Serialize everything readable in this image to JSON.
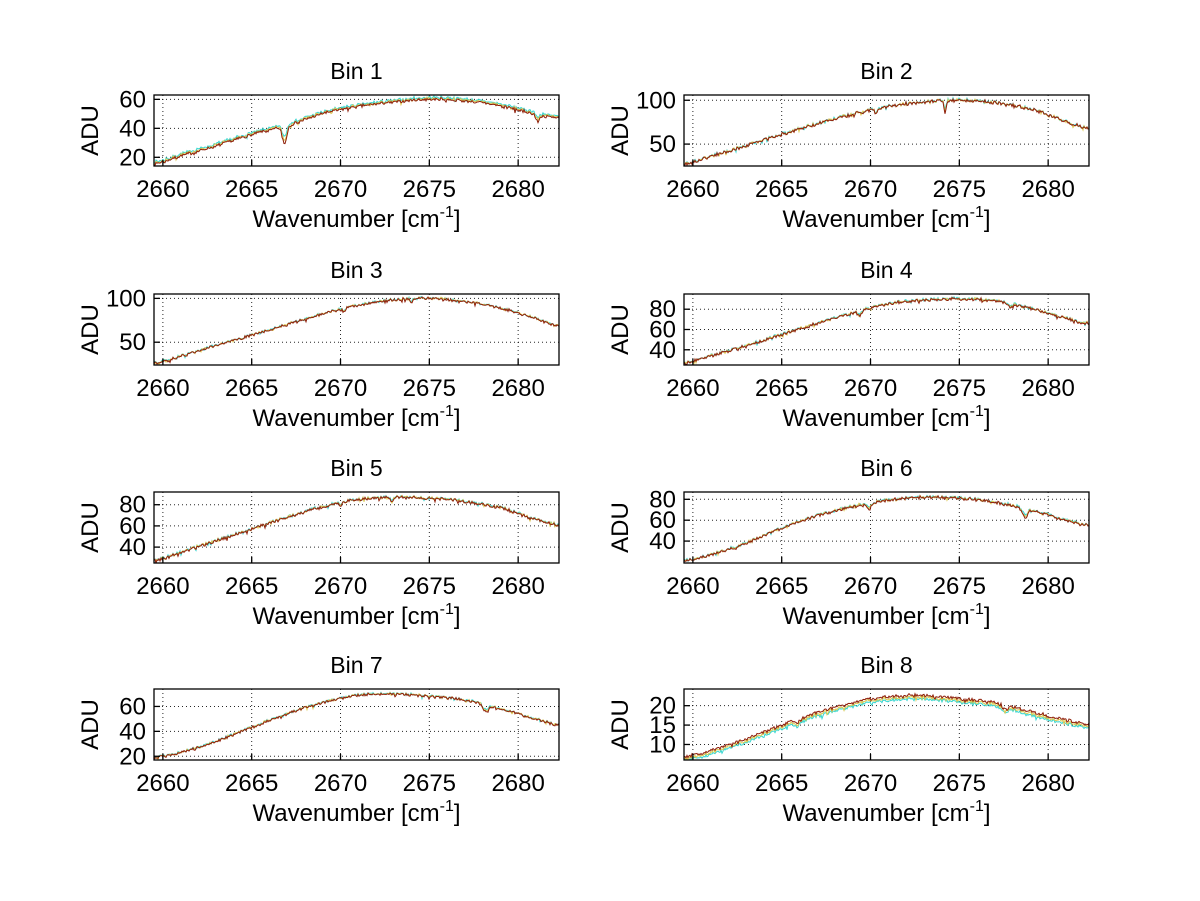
{
  "figure": {
    "background": "#ffffff",
    "axis_color": "#000000",
    "grid_style": "dotted",
    "ylabel": "ADU",
    "xlabel_pre": "Wavenumber [cm",
    "xlabel_sup": "-1",
    "xlabel_post": "]"
  },
  "chart_data": [
    {
      "type": "line",
      "title": "Bin 1",
      "ylabel": "ADU",
      "xlim": [
        2659.5,
        2682.3
      ],
      "ylim": [
        14,
        63
      ],
      "xticks": [
        2660,
        2665,
        2670,
        2675,
        2680
      ],
      "yticks": [
        20,
        40,
        60
      ],
      "grid": true,
      "legend": "none",
      "profile_x": [
        2659.5,
        2661,
        2663,
        2665,
        2667,
        2669,
        2671,
        2673,
        2675,
        2677,
        2679,
        2681,
        2682.3
      ],
      "profile_y": [
        15.5,
        21,
        28,
        35.5,
        42,
        50,
        55,
        58,
        60,
        59,
        55.5,
        50,
        47
      ],
      "dips": [
        [
          2666.85,
          0.18,
          12
        ],
        [
          2681.1,
          0.15,
          5
        ]
      ],
      "noise": 0.9,
      "series": [
        {
          "name": "trace-cyan",
          "color": "#33d6d1",
          "offset": 1.3,
          "dipscale": 0.7
        },
        {
          "name": "trace-yellow",
          "color": "#ddc94f",
          "offset": 0.55,
          "dipscale": 0.85
        },
        {
          "name": "trace-darkred",
          "color": "#8e1e0a",
          "offset": 0,
          "dipscale": 1
        }
      ]
    },
    {
      "type": "line",
      "title": "Bin 2",
      "ylabel": "ADU",
      "xlim": [
        2659.5,
        2682.3
      ],
      "ylim": [
        25,
        106
      ],
      "xticks": [
        2660,
        2665,
        2670,
        2675,
        2680
      ],
      "yticks": [
        50,
        100
      ],
      "grid": true,
      "legend": "none",
      "profile_x": [
        2659.5,
        2661,
        2663,
        2665,
        2667,
        2669,
        2671,
        2673,
        2675,
        2677,
        2679,
        2681,
        2682.3
      ],
      "profile_y": [
        27,
        36,
        48,
        61,
        73,
        84,
        93,
        98,
        100,
        97,
        90,
        76,
        68
      ],
      "dips": [
        [
          2670.3,
          0.1,
          6
        ],
        [
          2674.2,
          0.09,
          14
        ]
      ],
      "noise": 1.6,
      "series": [
        {
          "name": "trace-cyan",
          "color": "#33d6d1",
          "offset": 0.5,
          "dipscale": 0.7
        },
        {
          "name": "trace-yellow",
          "color": "#ddc94f",
          "offset": 0.25,
          "dipscale": 0.85
        },
        {
          "name": "trace-darkred",
          "color": "#8e1e0a",
          "offset": 0,
          "dipscale": 1
        }
      ]
    },
    {
      "type": "line",
      "title": "Bin 3",
      "ylabel": "ADU",
      "xlim": [
        2659.5,
        2682.3
      ],
      "ylim": [
        24,
        105
      ],
      "xticks": [
        2660,
        2665,
        2670,
        2675,
        2680
      ],
      "yticks": [
        50,
        100
      ],
      "grid": true,
      "legend": "none",
      "profile_x": [
        2659.5,
        2661,
        2663,
        2665,
        2667,
        2669,
        2671,
        2673,
        2675,
        2677,
        2679,
        2681,
        2682.3
      ],
      "profile_y": [
        26,
        34,
        46,
        58,
        70,
        82,
        92,
        98,
        100,
        96,
        89,
        77,
        68
      ],
      "dips": [
        [
          2670.2,
          0.1,
          4
        ],
        [
          2674.0,
          0.1,
          5
        ]
      ],
      "noise": 1.3,
      "series": [
        {
          "name": "trace-cyan",
          "color": "#33d6d1",
          "offset": 0.5,
          "dipscale": 0.7
        },
        {
          "name": "trace-yellow",
          "color": "#ddc94f",
          "offset": 0.25,
          "dipscale": 0.85
        },
        {
          "name": "trace-darkred",
          "color": "#8e1e0a",
          "offset": 0,
          "dipscale": 1
        }
      ]
    },
    {
      "type": "line",
      "title": "Bin 4",
      "ylabel": "ADU",
      "xlim": [
        2659.5,
        2682.3
      ],
      "ylim": [
        25,
        95
      ],
      "xticks": [
        2660,
        2665,
        2670,
        2675,
        2680
      ],
      "yticks": [
        40,
        60,
        80
      ],
      "grid": true,
      "legend": "none",
      "profile_x": [
        2659.5,
        2661,
        2663,
        2665,
        2667,
        2669,
        2671,
        2673,
        2675,
        2677,
        2679,
        2681,
        2682.3
      ],
      "profile_y": [
        27,
        34,
        44,
        55,
        66,
        76,
        85,
        89,
        90,
        88,
        81,
        71,
        66
      ],
      "dips": [
        [
          2669.4,
          0.12,
          5
        ],
        [
          2677.9,
          0.15,
          4
        ]
      ],
      "noise": 1.2,
      "series": [
        {
          "name": "trace-cyan",
          "color": "#33d6d1",
          "offset": 0.5,
          "dipscale": 0.7
        },
        {
          "name": "trace-yellow",
          "color": "#ddc94f",
          "offset": 0.25,
          "dipscale": 0.85
        },
        {
          "name": "trace-darkred",
          "color": "#8e1e0a",
          "offset": 0,
          "dipscale": 1
        }
      ]
    },
    {
      "type": "line",
      "title": "Bin 5",
      "ylabel": "ADU",
      "xlim": [
        2659.5,
        2682.3
      ],
      "ylim": [
        25,
        92
      ],
      "xticks": [
        2660,
        2665,
        2670,
        2675,
        2680
      ],
      "yticks": [
        40,
        60,
        80
      ],
      "grid": true,
      "legend": "none",
      "profile_x": [
        2659.5,
        2661,
        2663,
        2665,
        2667,
        2669,
        2671,
        2673,
        2675,
        2677,
        2679,
        2681,
        2682.3
      ],
      "profile_y": [
        27,
        35,
        46,
        57,
        68,
        78,
        85,
        87,
        86,
        83,
        77,
        66,
        61
      ],
      "dips": [
        [
          2670.0,
          0.1,
          4
        ],
        [
          2672.9,
          0.1,
          5
        ]
      ],
      "noise": 1.2,
      "series": [
        {
          "name": "trace-cyan",
          "color": "#33d6d1",
          "offset": 0.5,
          "dipscale": 0.7
        },
        {
          "name": "trace-yellow",
          "color": "#ddc94f",
          "offset": 0.25,
          "dipscale": 0.85
        },
        {
          "name": "trace-darkred",
          "color": "#8e1e0a",
          "offset": 0,
          "dipscale": 1
        }
      ]
    },
    {
      "type": "line",
      "title": "Bin 6",
      "ylabel": "ADU",
      "xlim": [
        2659.5,
        2682.3
      ],
      "ylim": [
        19,
        87
      ],
      "xticks": [
        2660,
        2665,
        2670,
        2675,
        2680
      ],
      "yticks": [
        40,
        60,
        80
      ],
      "grid": true,
      "legend": "none",
      "profile_x": [
        2659.5,
        2661,
        2663,
        2665,
        2667,
        2669,
        2671,
        2673,
        2675,
        2677,
        2679,
        2681,
        2682.3
      ],
      "profile_y": [
        21,
        27,
        38,
        52,
        64,
        73,
        79,
        82,
        81,
        77,
        70,
        60,
        55
      ],
      "dips": [
        [
          2669.9,
          0.15,
          6
        ],
        [
          2678.7,
          0.2,
          9
        ]
      ],
      "noise": 1.2,
      "series": [
        {
          "name": "trace-cyan",
          "color": "#33d6d1",
          "offset": 0.5,
          "dipscale": 0.7
        },
        {
          "name": "trace-yellow",
          "color": "#ddc94f",
          "offset": 0.25,
          "dipscale": 0.85
        },
        {
          "name": "trace-darkred",
          "color": "#8e1e0a",
          "offset": 0,
          "dipscale": 1
        }
      ]
    },
    {
      "type": "line",
      "title": "Bin 7",
      "ylabel": "ADU",
      "xlim": [
        2659.5,
        2682.3
      ],
      "ylim": [
        17,
        74
      ],
      "xticks": [
        2660,
        2665,
        2670,
        2675,
        2680
      ],
      "yticks": [
        20,
        40,
        60
      ],
      "grid": true,
      "legend": "none",
      "profile_x": [
        2659.5,
        2661,
        2663,
        2665,
        2667,
        2669,
        2671,
        2673,
        2675,
        2677,
        2679,
        2681,
        2682.3
      ],
      "profile_y": [
        19,
        23,
        32,
        43,
        54,
        63,
        69,
        70,
        68,
        65,
        58,
        50,
        45
      ],
      "dips": [
        [
          2678.2,
          0.2,
          6
        ]
      ],
      "noise": 0.9,
      "series": [
        {
          "name": "trace-cyan",
          "color": "#33d6d1",
          "offset": 0.4,
          "dipscale": 0.7
        },
        {
          "name": "trace-yellow",
          "color": "#ddc94f",
          "offset": 0.2,
          "dipscale": 0.85
        },
        {
          "name": "trace-darkred",
          "color": "#8e1e0a",
          "offset": 0,
          "dipscale": 1
        }
      ]
    },
    {
      "type": "line",
      "title": "Bin 8",
      "ylabel": "ADU",
      "xlim": [
        2659.5,
        2682.3
      ],
      "ylim": [
        6,
        24.3
      ],
      "xticks": [
        2660,
        2665,
        2670,
        2675,
        2680
      ],
      "yticks": [
        10,
        15,
        20
      ],
      "grid": true,
      "legend": "none",
      "profile_x": [
        2659.5,
        2661,
        2663,
        2665,
        2667,
        2669,
        2671,
        2673,
        2675,
        2677,
        2679,
        2681,
        2682.3
      ],
      "profile_y": [
        6.8,
        8.5,
        11.5,
        15,
        18.2,
        20.8,
        22.4,
        22.6,
        21.8,
        20.8,
        18.6,
        16.3,
        15.3
      ],
      "dips": [
        [
          2665.9,
          0.15,
          1.0
        ],
        [
          2677.6,
          0.2,
          1.3
        ]
      ],
      "noise": 0.35,
      "series": [
        {
          "name": "trace-cyan",
          "color": "#33d6d1",
          "offset": -0.95,
          "dipscale": 1
        },
        {
          "name": "trace-yellow",
          "color": "#ddc94f",
          "offset": -0.5,
          "dipscale": 1
        },
        {
          "name": "trace-darkred",
          "color": "#8e1e0a",
          "offset": 0,
          "dipscale": 1
        }
      ]
    }
  ]
}
